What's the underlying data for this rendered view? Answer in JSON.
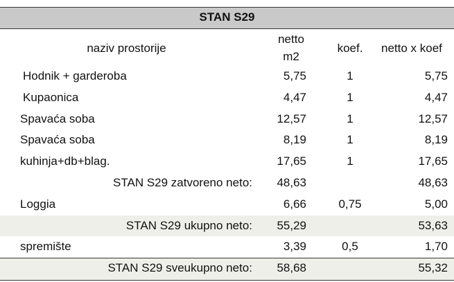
{
  "title": "STAN S29",
  "header": {
    "name": "naziv prostorije",
    "netto": [
      "netto",
      "m2"
    ],
    "koef": "koef.",
    "total": "netto x koef"
  },
  "rows": [
    {
      "name": "Hodnik + garderoba",
      "netto": "5,75",
      "koef": "1",
      "total": "5,75"
    },
    {
      "name": "Kupaonica",
      "netto": "4,47",
      "koef": "1",
      "total": "4,47"
    },
    {
      "name": "Spavaća soba",
      "netto": "12,57",
      "koef": "1",
      "total": "12,57"
    },
    {
      "name": "Spavaća soba",
      "netto": "8,19",
      "koef": "1",
      "total": "8,19"
    },
    {
      "name": "kuhinja+db+blag.",
      "netto": "17,65",
      "koef": "1",
      "total": "17,65"
    },
    {
      "name": "STAN S29 zatvoreno neto:",
      "netto": "48,63",
      "total": "48,63",
      "summary": true
    },
    {
      "name": "Loggia",
      "netto": "6,66",
      "koef": "0,75",
      "total": "5,00"
    },
    {
      "name": "STAN S29 ukupno neto:",
      "netto": "55,29",
      "total": "53,63",
      "summary": true,
      "shaded": true
    },
    {
      "name": "spremište",
      "netto": "3,39",
      "koef": "0,5",
      "total": "1,70"
    },
    {
      "name": "STAN S29 sveukupno neto:",
      "netto": "58,68",
      "total": "55,32",
      "summary": true,
      "shaded": true
    }
  ]
}
